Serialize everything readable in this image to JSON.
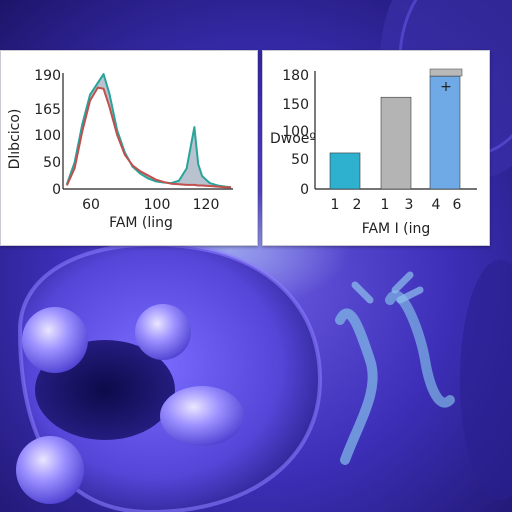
{
  "chart_data": [
    {
      "type": "line",
      "title": "",
      "xlabel": "FAM (ling",
      "ylabel": "Dlıbcico)",
      "x_ticks": [
        "60",
        "100",
        "120"
      ],
      "y_ticks": [
        "0",
        "50",
        "100",
        "165",
        "190"
      ],
      "xlim": [
        42,
        130
      ],
      "ylim": [
        0,
        190
      ],
      "grid": false,
      "legend": "none",
      "series": [
        {
          "color": "#2aa39a",
          "x": [
            44,
            48,
            52,
            56,
            60,
            63,
            66,
            70,
            74,
            78,
            82,
            86,
            90,
            94,
            98,
            102,
            106,
            110,
            112,
            114,
            118,
            122,
            126,
            129
          ],
          "y": [
            8,
            45,
            110,
            160,
            180,
            195,
            162,
            100,
            62,
            38,
            26,
            18,
            13,
            11,
            10,
            14,
            35,
            105,
            42,
            22,
            10,
            6,
            4,
            3
          ]
        },
        {
          "color": "#c0504d",
          "x": [
            44,
            48,
            52,
            56,
            60,
            63,
            66,
            70,
            74,
            78,
            82,
            86,
            90,
            94,
            98,
            102,
            106,
            110,
            112,
            114,
            118,
            122,
            126,
            129
          ],
          "y": [
            6,
            35,
            98,
            150,
            172,
            170,
            140,
            92,
            58,
            40,
            30,
            23,
            16,
            12,
            9,
            8,
            7,
            7,
            6,
            6,
            5,
            4,
            3,
            3
          ]
        }
      ]
    },
    {
      "type": "bar",
      "title": "",
      "xlabel": "FAM I (ing",
      "ylabel": "Dwoeº",
      "categories": [
        "1 2",
        "1 3",
        "4 6"
      ],
      "x_tick_labels": [
        "1",
        "2",
        "1",
        "3",
        "4",
        "6"
      ],
      "values": [
        55,
        140,
        172
      ],
      "colors": [
        "#2eb0cf",
        "#b4b4b4",
        "#6fa9e6"
      ],
      "y_ticks": [
        "0",
        "50",
        "100",
        "150",
        "180"
      ],
      "ylim": [
        0,
        180
      ],
      "grid": false,
      "legend": "top-right",
      "legend_marker": "+"
    }
  ]
}
